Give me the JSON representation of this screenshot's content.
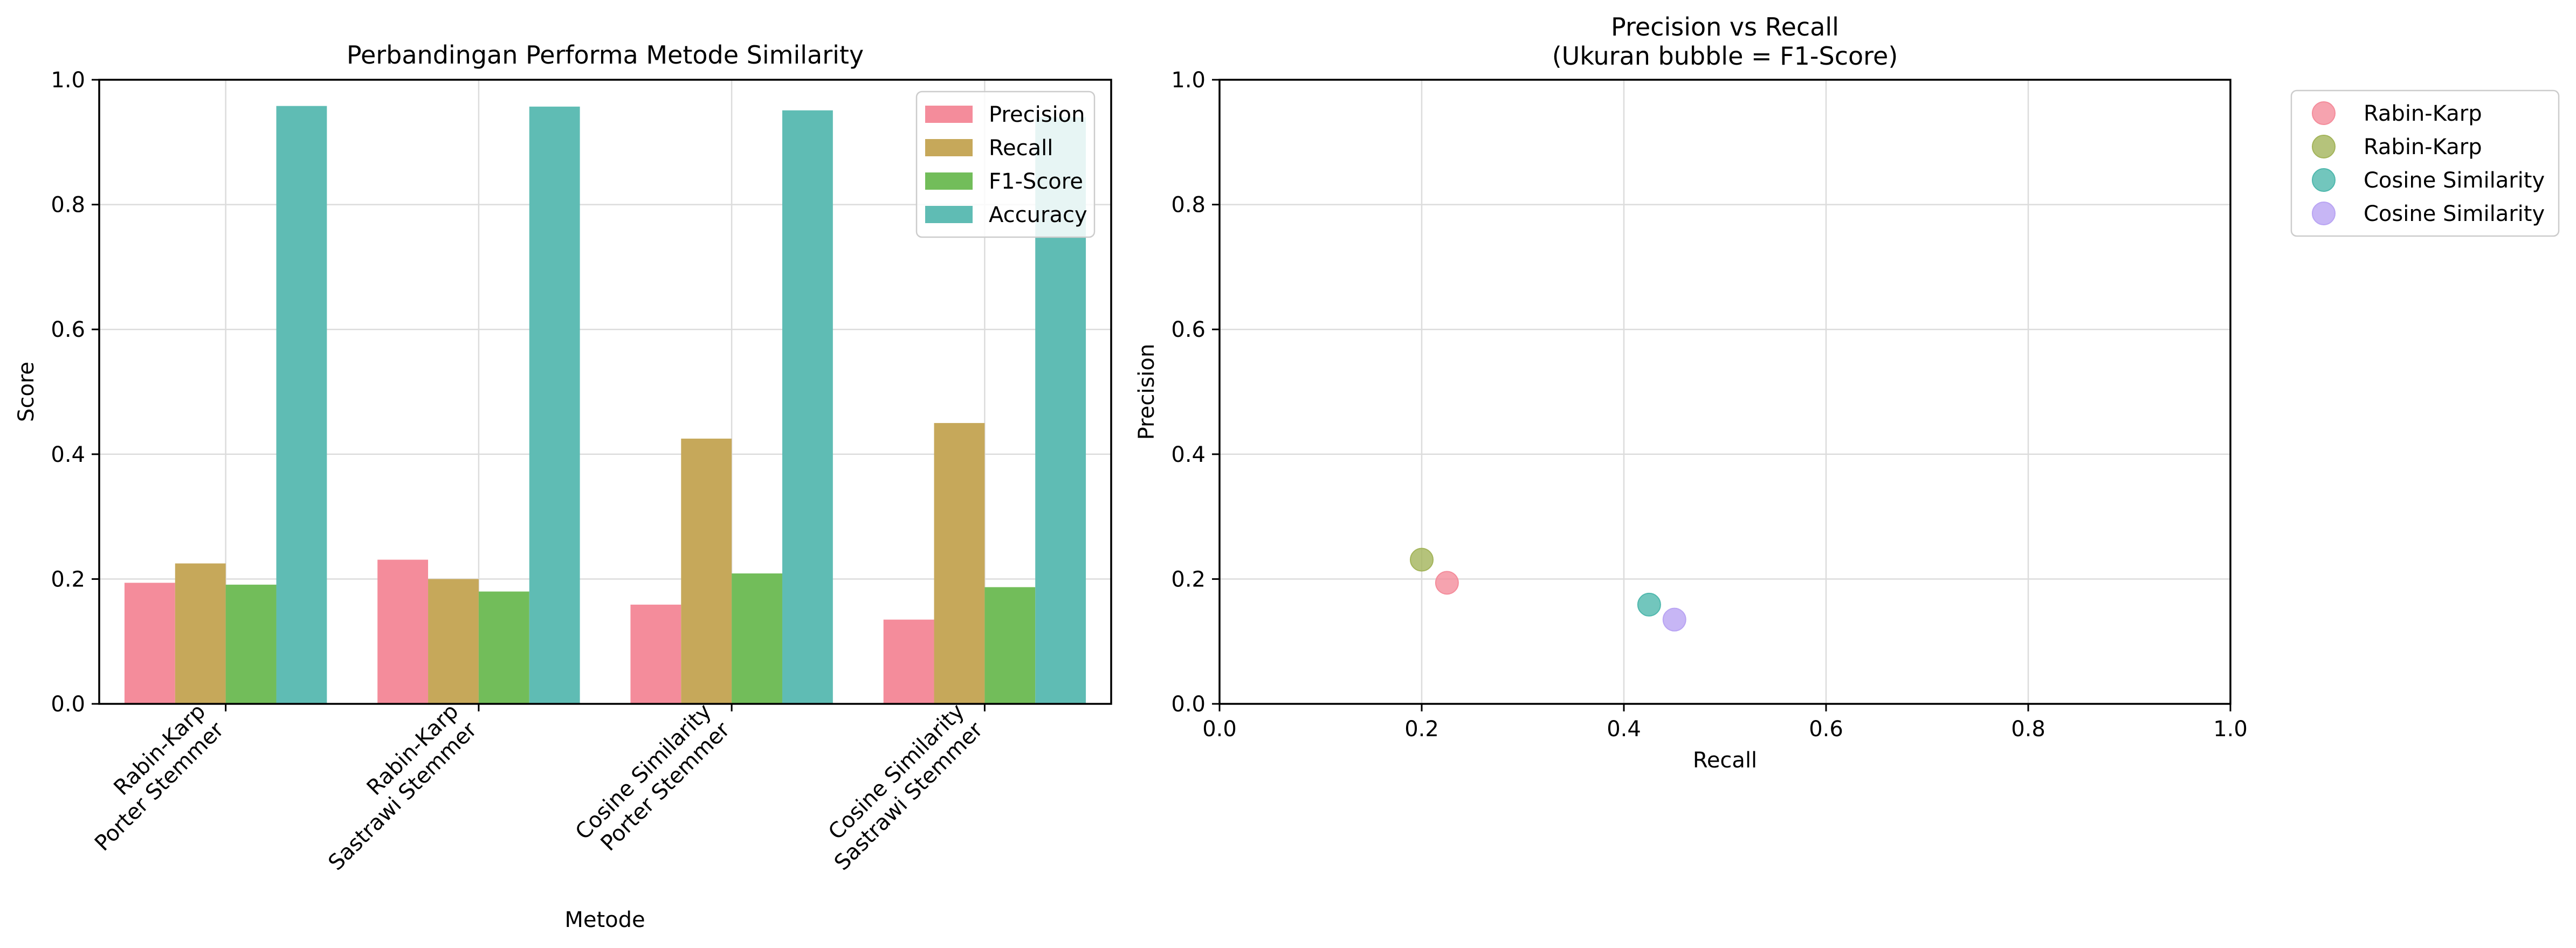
{
  "chart_data": [
    {
      "type": "bar",
      "title": "Perbandingan Performa Metode Similarity",
      "xlabel": "Metode",
      "ylabel": "Score",
      "ylim": [
        0,
        1.0
      ],
      "yticks": [
        "0.0",
        "0.2",
        "0.4",
        "0.6",
        "0.8",
        "1.0"
      ],
      "grid": true,
      "legend_position": "top-right",
      "categories": [
        [
          "Rabin-Karp",
          "Porter Stemmer"
        ],
        [
          "Rabin-Karp",
          "Sastrawi Stemmer"
        ],
        [
          "Cosine Similarity",
          "Porter Stemmer"
        ],
        [
          "Cosine Similarity",
          "Sastrawi Stemmer"
        ]
      ],
      "series": [
        {
          "name": "Precision",
          "color": "#f48c9b",
          "values": [
            0.194,
            0.231,
            0.159,
            0.135
          ]
        },
        {
          "name": "Recall",
          "color": "#c6a85a",
          "values": [
            0.225,
            0.2,
            0.425,
            0.45
          ]
        },
        {
          "name": "F1-Score",
          "color": "#72bd5a",
          "values": [
            0.191,
            0.18,
            0.209,
            0.187
          ]
        },
        {
          "name": "Accuracy",
          "color": "#5fbcb4",
          "values": [
            0.958,
            0.957,
            0.951,
            0.94
          ]
        }
      ]
    },
    {
      "type": "scatter",
      "title": [
        "Precision vs Recall",
        "(Ukuran bubble = F1-Score)"
      ],
      "xlabel": "Recall",
      "ylabel": "Precision",
      "xlim": [
        0,
        1.0
      ],
      "ylim": [
        0,
        1.0
      ],
      "xticks": [
        "0.0",
        "0.2",
        "0.4",
        "0.6",
        "0.8",
        "1.0"
      ],
      "yticks": [
        "0.0",
        "0.2",
        "0.4",
        "0.6",
        "0.8",
        "1.0"
      ],
      "grid": true,
      "legend_position": "outside-right",
      "series": [
        {
          "name": "Rabin-Karp",
          "color": "#f48c9b",
          "x": 0.225,
          "y": 0.194
        },
        {
          "name": "Rabin-Karp",
          "color": "#a3b45a",
          "x": 0.2,
          "y": 0.231
        },
        {
          "name": "Cosine Similarity",
          "color": "#4fb8ad",
          "x": 0.425,
          "y": 0.159
        },
        {
          "name": "Cosine Similarity",
          "color": "#b9a4f3",
          "x": 0.45,
          "y": 0.135
        }
      ]
    }
  ]
}
